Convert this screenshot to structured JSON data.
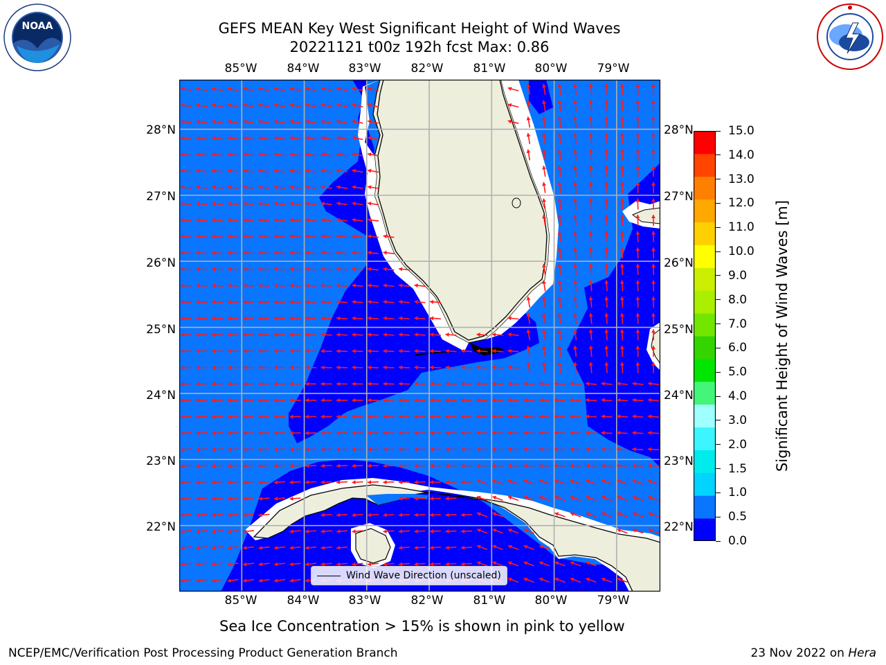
{
  "title": {
    "line1": "GEFS MEAN Key West Significant Height of Wind Waves",
    "line2": "20221121 t00z 192h fcst   Max: 0.86"
  },
  "map": {
    "lon_labels": [
      "85°W",
      "84°W",
      "83°W",
      "82°W",
      "81°W",
      "80°W",
      "79°W"
    ],
    "lat_labels": [
      "28°N",
      "27°N",
      "26°N",
      "25°N",
      "24°N",
      "23°N",
      "22°N"
    ],
    "lon_values": [
      -85,
      -84,
      -83,
      -82,
      -81,
      -80,
      -79
    ],
    "lat_values": [
      28,
      27,
      26,
      25,
      24,
      23,
      22
    ],
    "lon_range": [
      -86.0,
      -78.3
    ],
    "lat_range": [
      21.0,
      28.75
    ],
    "legend_label": "Wind Wave Direction (unscaled)",
    "colors": {
      "band_0_0_5": "#0000ff",
      "band_0_5_1_0": "#0a75ff",
      "land": "#eeeedd",
      "arrow": "#ff1a1a",
      "grid": "#b0b0b0"
    }
  },
  "colorbar": {
    "label": "Significant Height of Wind Waves [m]",
    "ticks": [
      "0.0",
      "0.5",
      "1.0",
      "1.5",
      "2.0",
      "3.0",
      "4.0",
      "5.0",
      "6.0",
      "7.0",
      "8.0",
      "9.0",
      "10.0",
      "11.0",
      "12.0",
      "13.0",
      "14.0",
      "15.0"
    ],
    "colors": [
      "#0000ff",
      "#0a75ff",
      "#00d4ff",
      "#00ecec",
      "#3cf5ff",
      "#a0ffff",
      "#45f579",
      "#00e600",
      "#33d400",
      "#73e600",
      "#aaee00",
      "#ccee00",
      "#ffff00",
      "#ffd000",
      "#ffa800",
      "#ff8000",
      "#ff4500",
      "#ff0000"
    ]
  },
  "footer": {
    "sea_ice_note": "Sea Ice Concentration > 15% is shown in pink to yellow",
    "branch": "NCEP/EMC/Verification Post Processing Product Generation Branch",
    "date_prefix": "23 Nov 2022 on ",
    "machine": "Hera"
  },
  "logos": {
    "noaa_text": "NOAA",
    "noaa_ring_text": "NATIONAL OCEANIC AND ATMOSPHERIC ADMINISTRATION · U.S. DEPARTMENT OF COMMERCE",
    "nws_ring_text": "NATIONAL WEATHER SERVICE"
  }
}
